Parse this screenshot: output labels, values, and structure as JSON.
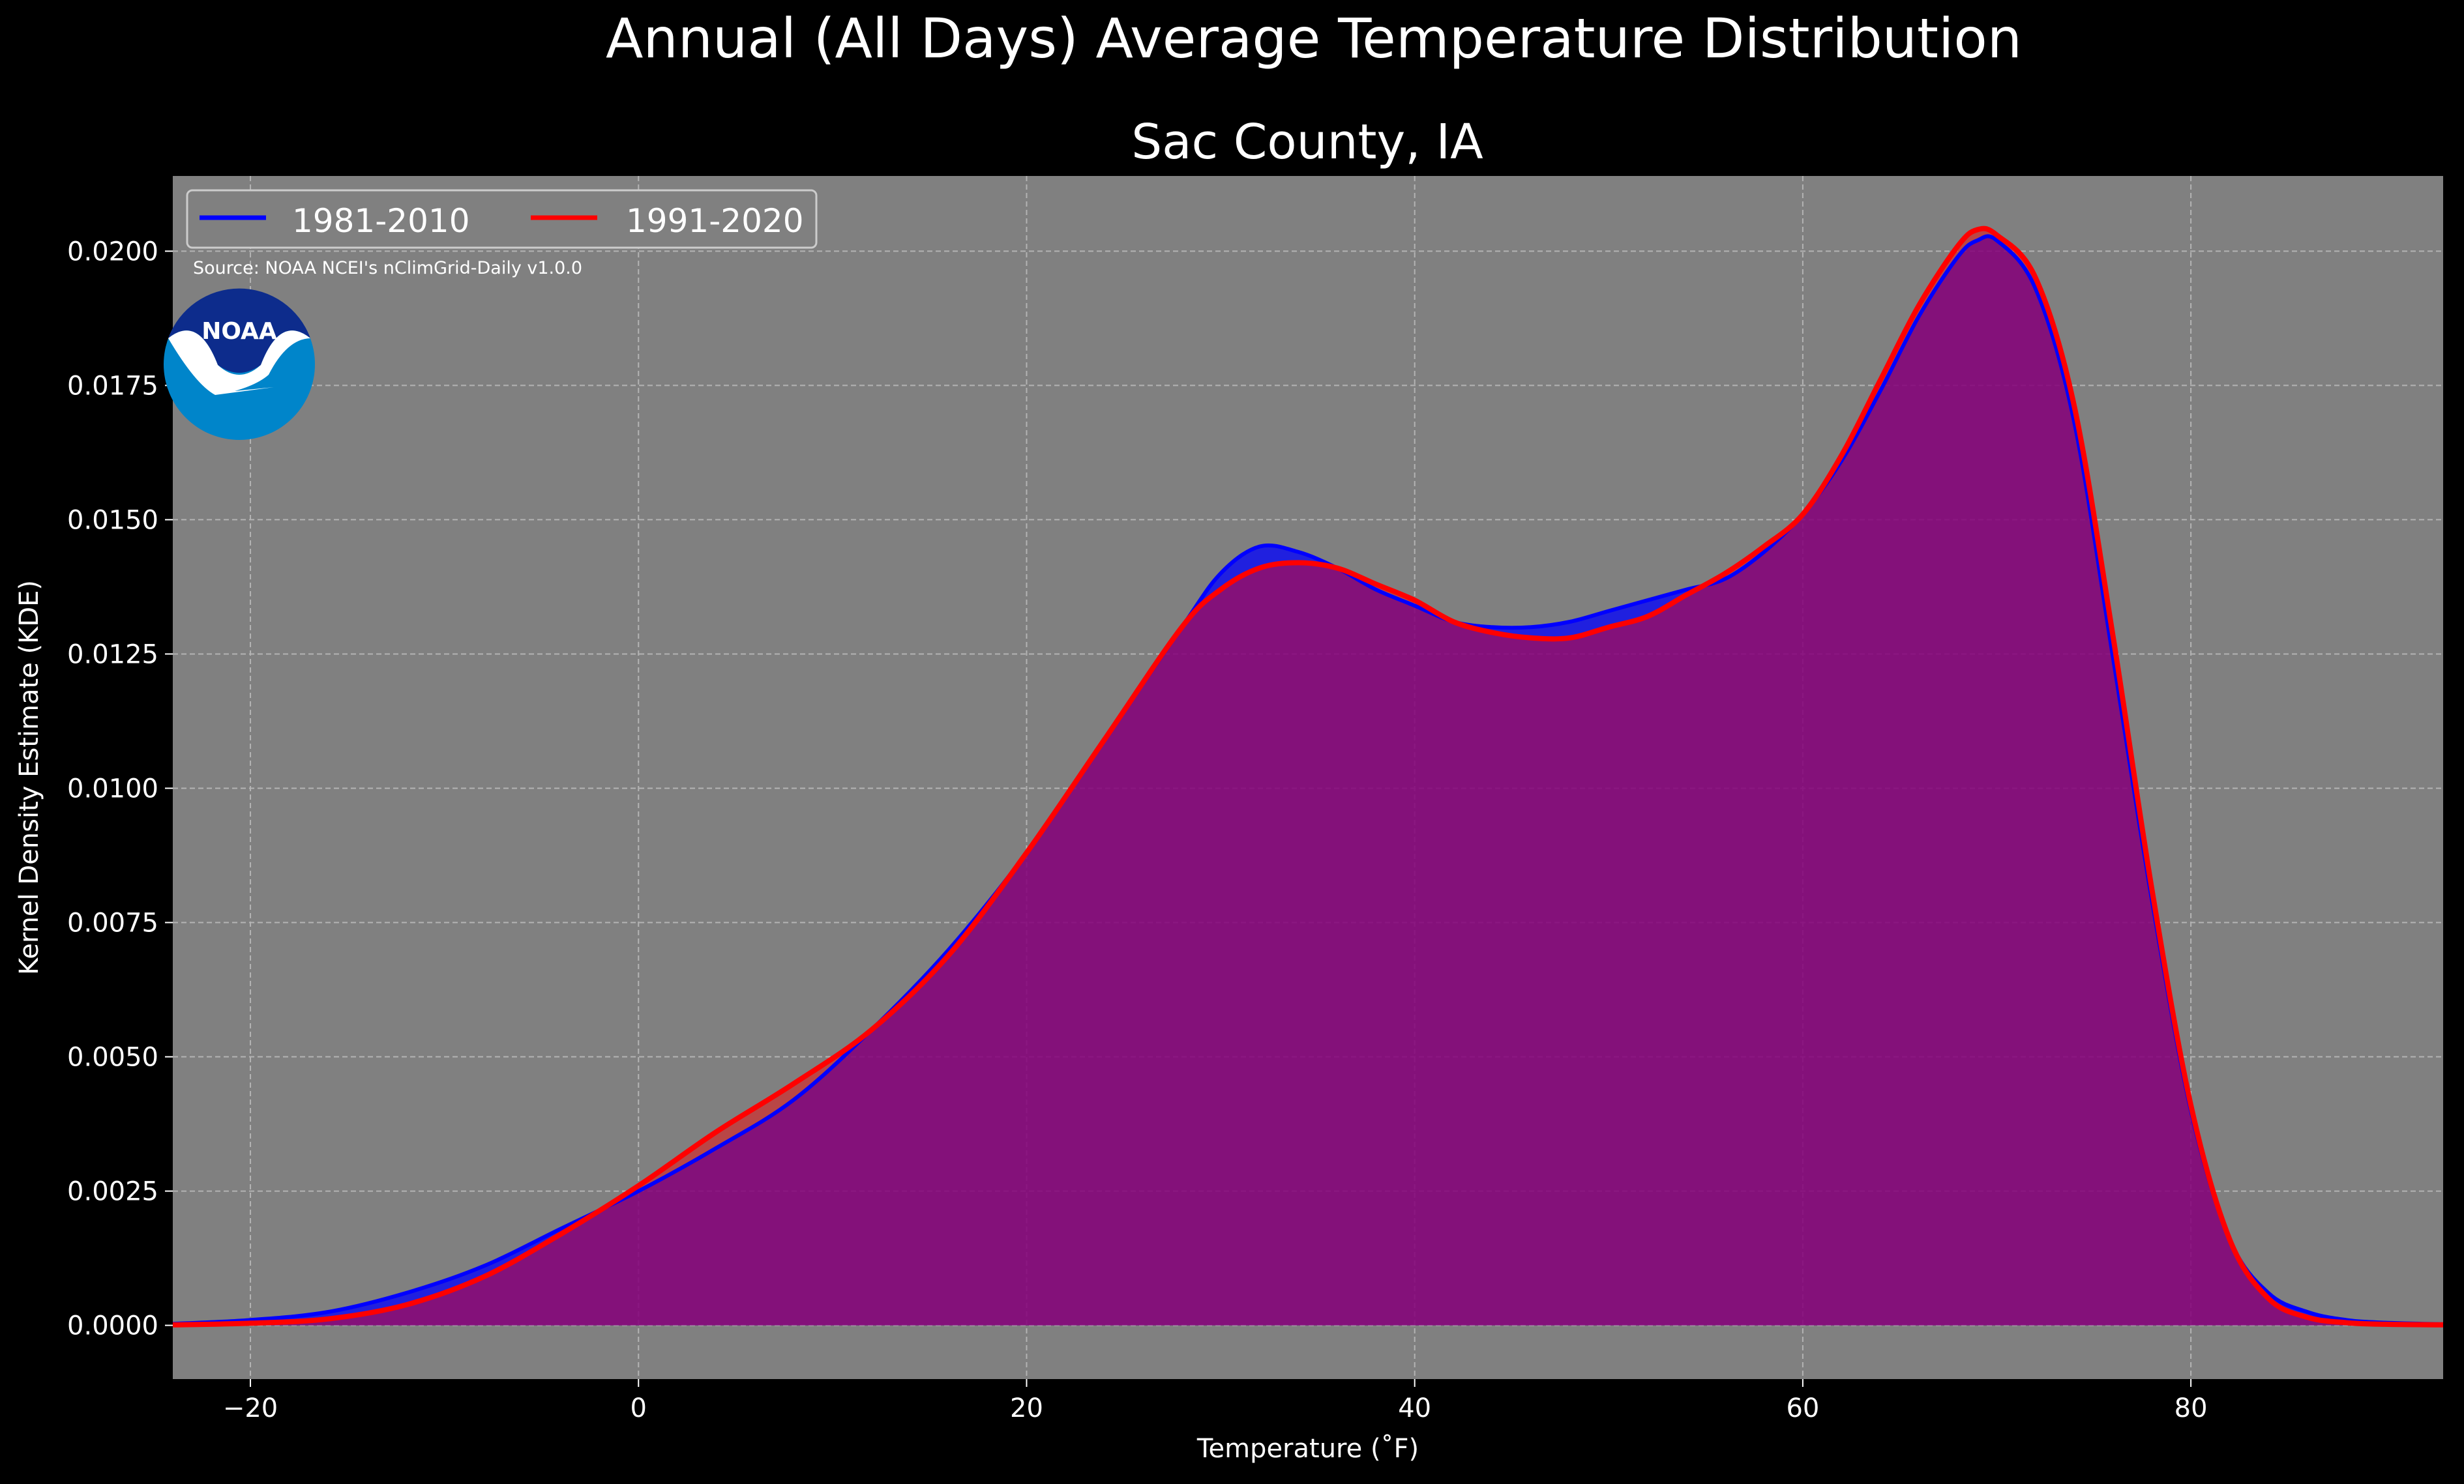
{
  "figure": {
    "suptitle": "Annual (All Days) Average Temperature Distribution",
    "source_note": "Source: NOAA NCEI's nClimGrid-Daily v1.0.0",
    "logo_text": "NOAA"
  },
  "colors": {
    "figure_background": "#000000",
    "plot_background": "#808080",
    "grid": "#b3b3b3",
    "text": "#ffffff",
    "series_1981_2010": "#0000ff",
    "series_1991_2020": "#ff0000",
    "fill_overlap": "#9e1f5e",
    "logo_dark_blue": "#0d2c8c",
    "logo_light_blue": "#0085ca"
  },
  "chart_data": {
    "type": "area",
    "title": "Sac County, IA",
    "xlabel": "Temperature (˚F)",
    "ylabel": "Kernel Density Estimate (KDE)",
    "xlim": [
      -24,
      93
    ],
    "ylim": [
      -0.001,
      0.0214
    ],
    "xticks": [
      -20,
      0,
      20,
      40,
      60,
      80
    ],
    "xtick_labels": [
      "−20",
      "0",
      "20",
      "40",
      "60",
      "80"
    ],
    "yticks": [
      0,
      0.0025,
      0.005,
      0.0075,
      0.01,
      0.0125,
      0.015,
      0.0175,
      0.02
    ],
    "ytick_labels": [
      "0.0000",
      "0.0025",
      "0.0050",
      "0.0075",
      "0.0100",
      "0.0125",
      "0.0150",
      "0.0175",
      "0.0200"
    ],
    "grid": true,
    "legend_position": "top-left",
    "x": [
      -24,
      -20,
      -16,
      -12,
      -8,
      -4,
      0,
      4,
      8,
      12,
      16,
      20,
      24,
      28,
      30,
      32,
      34,
      36,
      38,
      40,
      42,
      44,
      46,
      48,
      50,
      52,
      54,
      56,
      58,
      60,
      62,
      64,
      66,
      68,
      69,
      70,
      72,
      74,
      76,
      78,
      80,
      82,
      84,
      86,
      88,
      90,
      93
    ],
    "series": [
      {
        "name": "1981-2010",
        "color": "#0000ff",
        "values": [
          3e-05,
          0.0001,
          0.00025,
          0.0006,
          0.0011,
          0.0018,
          0.0025,
          0.0033,
          0.0042,
          0.0055,
          0.007,
          0.0088,
          0.0109,
          0.013,
          0.014,
          0.0145,
          0.0144,
          0.0141,
          0.0137,
          0.0134,
          0.0131,
          0.013,
          0.013,
          0.0131,
          0.0133,
          0.0135,
          0.0137,
          0.0139,
          0.0144,
          0.0151,
          0.0161,
          0.0174,
          0.0188,
          0.0199,
          0.0202,
          0.0202,
          0.0193,
          0.0168,
          0.0124,
          0.0079,
          0.004,
          0.0016,
          0.0006,
          0.00025,
          0.0001,
          5e-05,
          2e-05
        ]
      },
      {
        "name": "1991-2020",
        "color": "#ff0000",
        "values": [
          1e-05,
          4e-05,
          0.00012,
          0.00038,
          0.0009,
          0.0017,
          0.0026,
          0.0036,
          0.0045,
          0.0055,
          0.0069,
          0.0088,
          0.0109,
          0.013,
          0.0137,
          0.0141,
          0.0142,
          0.0141,
          0.0138,
          0.0135,
          0.0131,
          0.0129,
          0.0128,
          0.0128,
          0.013,
          0.0132,
          0.0136,
          0.014,
          0.0145,
          0.0151,
          0.0162,
          0.0176,
          0.019,
          0.0201,
          0.0204,
          0.0203,
          0.0195,
          0.0171,
          0.0128,
          0.0081,
          0.0041,
          0.0016,
          0.0005,
          0.00015,
          5e-05,
          2e-05,
          1e-05
        ]
      }
    ]
  }
}
